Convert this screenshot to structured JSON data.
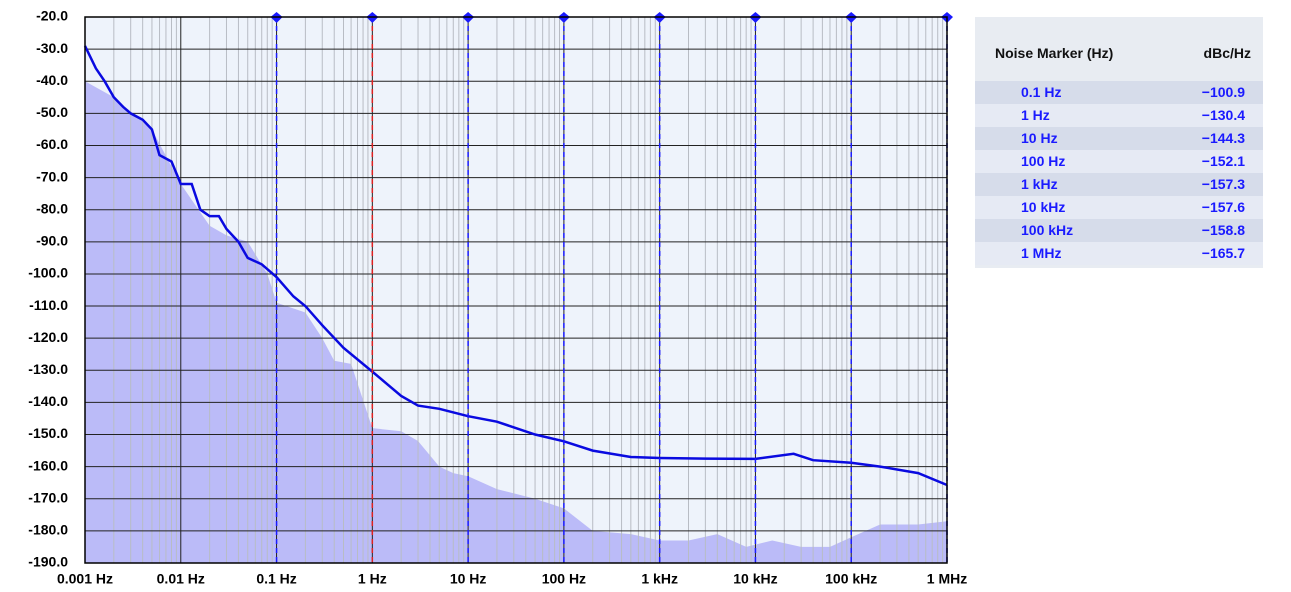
{
  "chart_data": {
    "type": "area-line",
    "xscale": "log",
    "xlim": [
      0.001,
      1000000
    ],
    "xticks": [
      {
        "value": 0.001,
        "label": "0.001 Hz"
      },
      {
        "value": 0.01,
        "label": "0.01 Hz"
      },
      {
        "value": 0.1,
        "label": "0.1 Hz"
      },
      {
        "value": 1,
        "label": "1 Hz"
      },
      {
        "value": 10,
        "label": "10 Hz"
      },
      {
        "value": 100,
        "label": "100 Hz"
      },
      {
        "value": 1000,
        "label": "1 kHz"
      },
      {
        "value": 10000,
        "label": "10 kHz"
      },
      {
        "value": 100000,
        "label": "100 kHz"
      },
      {
        "value": 1000000,
        "label": "1 MHz"
      }
    ],
    "ylim": [
      -190,
      -20
    ],
    "yticks": [
      {
        "value": -20,
        "label": "-20.0"
      },
      {
        "value": -30,
        "label": "-30.0"
      },
      {
        "value": -40,
        "label": "-40.0"
      },
      {
        "value": -50,
        "label": "-50.0"
      },
      {
        "value": -60,
        "label": "-60.0"
      },
      {
        "value": -70,
        "label": "-70.0"
      },
      {
        "value": -80,
        "label": "-80.0"
      },
      {
        "value": -90,
        "label": "-90.0"
      },
      {
        "value": -100,
        "label": "-100.0"
      },
      {
        "value": -110,
        "label": "-110.0"
      },
      {
        "value": -120,
        "label": "-120.0"
      },
      {
        "value": -130,
        "label": "-130.0"
      },
      {
        "value": -140,
        "label": "-140.0"
      },
      {
        "value": -150,
        "label": "-150.0"
      },
      {
        "value": -160,
        "label": "-160.0"
      },
      {
        "value": -170,
        "label": "-170.0"
      },
      {
        "value": -180,
        "label": "-180.0"
      },
      {
        "value": -190,
        "label": "-190.0"
      }
    ],
    "grid": true,
    "minor_grid": true,
    "series": [
      {
        "kind": "area",
        "color": "#bbbbf8",
        "x": [
          0.001,
          0.002,
          0.005,
          0.01,
          0.02,
          0.03,
          0.05,
          0.08,
          0.1,
          0.2,
          0.3,
          0.4,
          0.6,
          1,
          2,
          3,
          5,
          7,
          10,
          20,
          50,
          100,
          200,
          500,
          1000,
          2000,
          4000,
          8000,
          15000,
          30000,
          60000,
          100000,
          200000,
          500000,
          1000000
        ],
        "values": [
          -40,
          -45,
          -55,
          -72,
          -85,
          -88,
          -90,
          -100,
          -109,
          -112,
          -120,
          -127,
          -128,
          -148,
          -149,
          -152,
          -160,
          -162,
          -163,
          -167,
          -170,
          -173,
          -180,
          -181,
          -183,
          -183,
          -181,
          -185,
          -183,
          -185,
          -185,
          -182,
          -178,
          -178,
          -177
        ]
      },
      {
        "kind": "line",
        "color": "#0a0ae0",
        "x": [
          0.001,
          0.0013,
          0.0016,
          0.002,
          0.0025,
          0.003,
          0.004,
          0.005,
          0.006,
          0.008,
          0.01,
          0.013,
          0.016,
          0.02,
          0.025,
          0.03,
          0.04,
          0.05,
          0.07,
          0.1,
          0.15,
          0.2,
          0.3,
          0.5,
          1,
          2,
          3,
          5,
          10,
          20,
          50,
          100,
          200,
          500,
          1000,
          3000,
          10000,
          25000,
          40000,
          100000,
          200000,
          500000,
          1000000
        ],
        "values": [
          -29,
          -36,
          -40,
          -45,
          -48,
          -50,
          -52,
          -55,
          -63,
          -65,
          -72,
          -72,
          -80,
          -82,
          -82,
          -86,
          -90,
          -95,
          -97,
          -101,
          -107,
          -110,
          -116,
          -123,
          -130.4,
          -138,
          -141,
          -142,
          -144.3,
          -146,
          -150,
          -152.1,
          -155,
          -157,
          -157.3,
          -157.5,
          -157.6,
          -156,
          -158,
          -158.8,
          -160,
          -162,
          -165.7
        ]
      }
    ],
    "markers": {
      "color": "#1a1aff",
      "highlight_color": "#e02020",
      "highlight_index": 1,
      "x": [
        0.1,
        1,
        10,
        100,
        1000,
        10000,
        100000,
        1000000
      ],
      "labels": [
        "0.1 Hz",
        "1 Hz",
        "10 Hz",
        "100 Hz",
        "1 kHz",
        "10 kHz",
        "100 kHz",
        "1 MHz"
      ],
      "values": [
        -100.9,
        -130.4,
        -144.3,
        -152.1,
        -157.3,
        -157.6,
        -158.8,
        -165.7
      ],
      "value_labels": [
        "−100.9",
        "−130.4",
        "−144.3",
        "−152.1",
        "−157.3",
        "−157.6",
        "−158.8",
        "−165.7"
      ]
    },
    "table_headers": [
      "Noise Marker (Hz)",
      "dBc/Hz"
    ]
  }
}
